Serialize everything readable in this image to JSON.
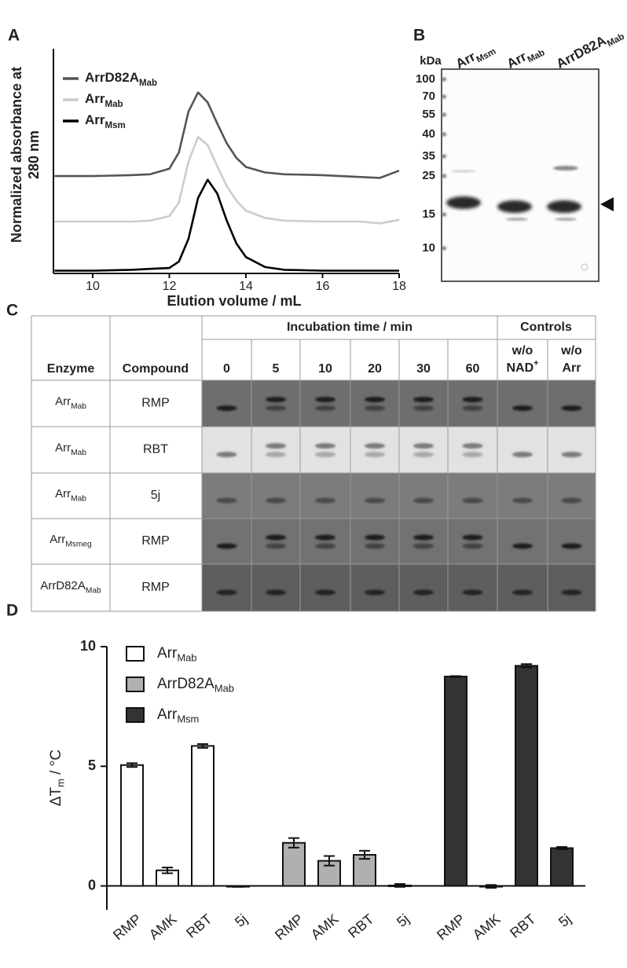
{
  "panel_labels": [
    "A",
    "B",
    "C",
    "D"
  ],
  "chart_data": [
    {
      "type": "line",
      "ylabel": [
        "Normalized absorbance at",
        "280 nm"
      ],
      "xlabel": "Elution volume / mL",
      "x": [
        9,
        10,
        11,
        11.5,
        12,
        12.25,
        12.5,
        12.75,
        13,
        13.25,
        13.5,
        13.75,
        14,
        14.5,
        15,
        16,
        17,
        17.5,
        18
      ],
      "xlim": [
        9,
        18
      ],
      "xticks": [
        10,
        12,
        14,
        16,
        18
      ],
      "ylim": [
        -0.03,
        2.44
      ],
      "legend": "upper-left",
      "series": [
        {
          "name": "ArrD82A",
          "name_sub": "Mab",
          "color": "#555555",
          "values": [
            1.04,
            1.04,
            1.05,
            1.06,
            1.12,
            1.3,
            1.75,
            1.96,
            1.85,
            1.62,
            1.4,
            1.24,
            1.14,
            1.08,
            1.06,
            1.05,
            1.03,
            1.02,
            1.1
          ]
        },
        {
          "name": "Arr",
          "name_sub": "Mab",
          "color": "#cccccc",
          "values": [
            0.54,
            0.54,
            0.54,
            0.55,
            0.6,
            0.75,
            1.2,
            1.47,
            1.38,
            1.15,
            0.93,
            0.77,
            0.66,
            0.58,
            0.55,
            0.54,
            0.54,
            0.52,
            0.56
          ]
        },
        {
          "name": "Arr",
          "name_sub": "Msm",
          "color": "#000000",
          "values": [
            0,
            0,
            0.01,
            0.02,
            0.03,
            0.1,
            0.35,
            0.8,
            1.0,
            0.85,
            0.55,
            0.3,
            0.15,
            0.04,
            0.01,
            0,
            0,
            0,
            0
          ]
        }
      ]
    },
    {
      "type": "bar",
      "ylabel": {
        "base": "ΔT",
        "sub": "m",
        "rest": " / °C"
      },
      "categories": [
        "RMP",
        "AMK",
        "RBT",
        "5j",
        "RMP",
        "AMK",
        "RBT",
        "5j",
        "RMP",
        "AMK",
        "RBT",
        "5j"
      ],
      "ylim": [
        -1,
        10
      ],
      "yticks": [
        0,
        5,
        10
      ],
      "legend": "upper-left",
      "series": [
        {
          "name": "Arr",
          "name_sub": "Mab",
          "color": "#ffffff",
          "values": [
            5.05,
            0.65,
            5.85,
            -0.02,
            null,
            null,
            null,
            null,
            null,
            null,
            null,
            null
          ],
          "errors": [
            0.08,
            0.12,
            0.08,
            0.02,
            null,
            null,
            null,
            null,
            null,
            null,
            null,
            null
          ]
        },
        {
          "name": "ArrD82A",
          "name_sub": "Mab",
          "color": "#b0b0b0",
          "values": [
            null,
            null,
            null,
            null,
            1.8,
            1.05,
            1.3,
            0.02,
            null,
            null,
            null,
            null
          ],
          "errors": [
            null,
            null,
            null,
            null,
            0.2,
            0.2,
            0.17,
            0.06,
            null,
            null,
            null,
            null
          ]
        },
        {
          "name": "Arr",
          "name_sub": "Msm",
          "color": "#333333",
          "values": [
            null,
            null,
            null,
            null,
            null,
            null,
            null,
            null,
            8.75,
            -0.02,
            9.2,
            1.58
          ],
          "errors": [
            null,
            null,
            null,
            null,
            null,
            null,
            null,
            null,
            0.02,
            0.06,
            0.07,
            0.05
          ]
        }
      ]
    }
  ],
  "gel": {
    "unit": "kDa",
    "markers": [
      "100",
      "70",
      "55",
      "40",
      "35",
      "25",
      "15",
      "10"
    ],
    "lanes": [
      {
        "base": "Arr",
        "sub": "Msm"
      },
      {
        "base": "Arr",
        "sub": "Mab"
      },
      {
        "base": "ArrD82A",
        "sub": "Mab"
      }
    ]
  },
  "tlc_table": {
    "header": {
      "enzyme": "Enzyme",
      "compound": "Compound",
      "time_group": "Incubation time / min",
      "times": [
        "0",
        "5",
        "10",
        "20",
        "30",
        "60"
      ],
      "controls_group": "Controls",
      "controls": [
        {
          "line1": "w/o",
          "line2": "NAD",
          "sup": "+"
        },
        {
          "line1": "w/o",
          "line2": "Arr"
        }
      ]
    },
    "rows": [
      {
        "enzyme": "Arr",
        "enzyme_sub": "Mab",
        "compound": "RMP"
      },
      {
        "enzyme": "Arr",
        "enzyme_sub": "Mab",
        "compound": "RBT"
      },
      {
        "enzyme": "Arr",
        "enzyme_sub": "Mab",
        "compound": "5j"
      },
      {
        "enzyme": "Arr",
        "enzyme_sub": "Msmeg",
        "compound": "RMP"
      },
      {
        "enzyme": "ArrD82A",
        "enzyme_sub": "Mab",
        "compound": "RMP"
      }
    ]
  }
}
